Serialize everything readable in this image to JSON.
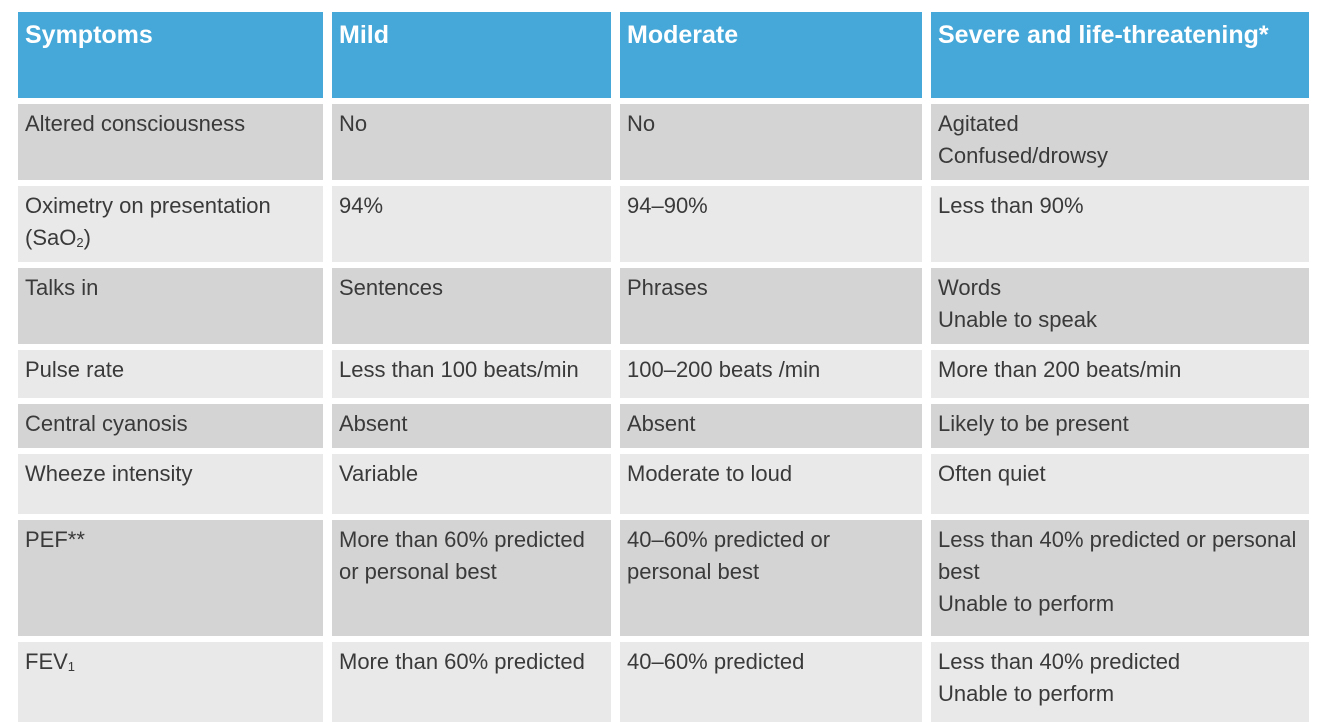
{
  "table": {
    "headers": [
      "Symptoms",
      "Mild",
      "Moderate",
      "Severe and life-threatening*"
    ],
    "rows": [
      {
        "symptom": "Altered consciousness",
        "mild": "No",
        "moderate": "No",
        "severe": [
          "Agitated",
          "Confused/drowsy"
        ]
      },
      {
        "symptom": "Oximetry on presentation",
        "symptom_line2_prefix": "(SaO",
        "symptom_line2_sub": "2",
        "symptom_line2_suffix": ")",
        "mild": "94%",
        "moderate": "94–90%",
        "severe": [
          "Less than 90%"
        ]
      },
      {
        "symptom": "Talks in",
        "mild": "Sentences",
        "moderate": "Phrases",
        "severe": [
          "Words",
          "Unable to speak"
        ]
      },
      {
        "symptom": "Pulse rate",
        "mild": "Less than 100 beats/min",
        "moderate": "100–200 beats /min",
        "severe": [
          "More than 200 beats/min"
        ]
      },
      {
        "symptom": "Central cyanosis",
        "mild": "Absent",
        "moderate": "Absent",
        "severe": [
          "Likely to be present"
        ]
      },
      {
        "symptom": "Wheeze intensity",
        "mild": "Variable",
        "moderate": "Moderate to loud",
        "severe": [
          "Often quiet"
        ]
      },
      {
        "symptom": "PEF**",
        "mild": "More than 60% predicted or personal best",
        "moderate": "40–60% predicted or personal best",
        "severe": [
          "Less than 40% predicted or personal best",
          "Unable to perform"
        ]
      },
      {
        "symptom_prefix": "FEV",
        "symptom_sub": "1",
        "mild": "More than 60% predicted",
        "moderate": "40–60% predicted",
        "severe": [
          "Less than 40% predicted",
          "Unable to perform"
        ]
      }
    ]
  },
  "colors": {
    "header_bg": "#46a8d9",
    "row_dark": "#d4d4d4",
    "row_light": "#e9e9e9"
  }
}
